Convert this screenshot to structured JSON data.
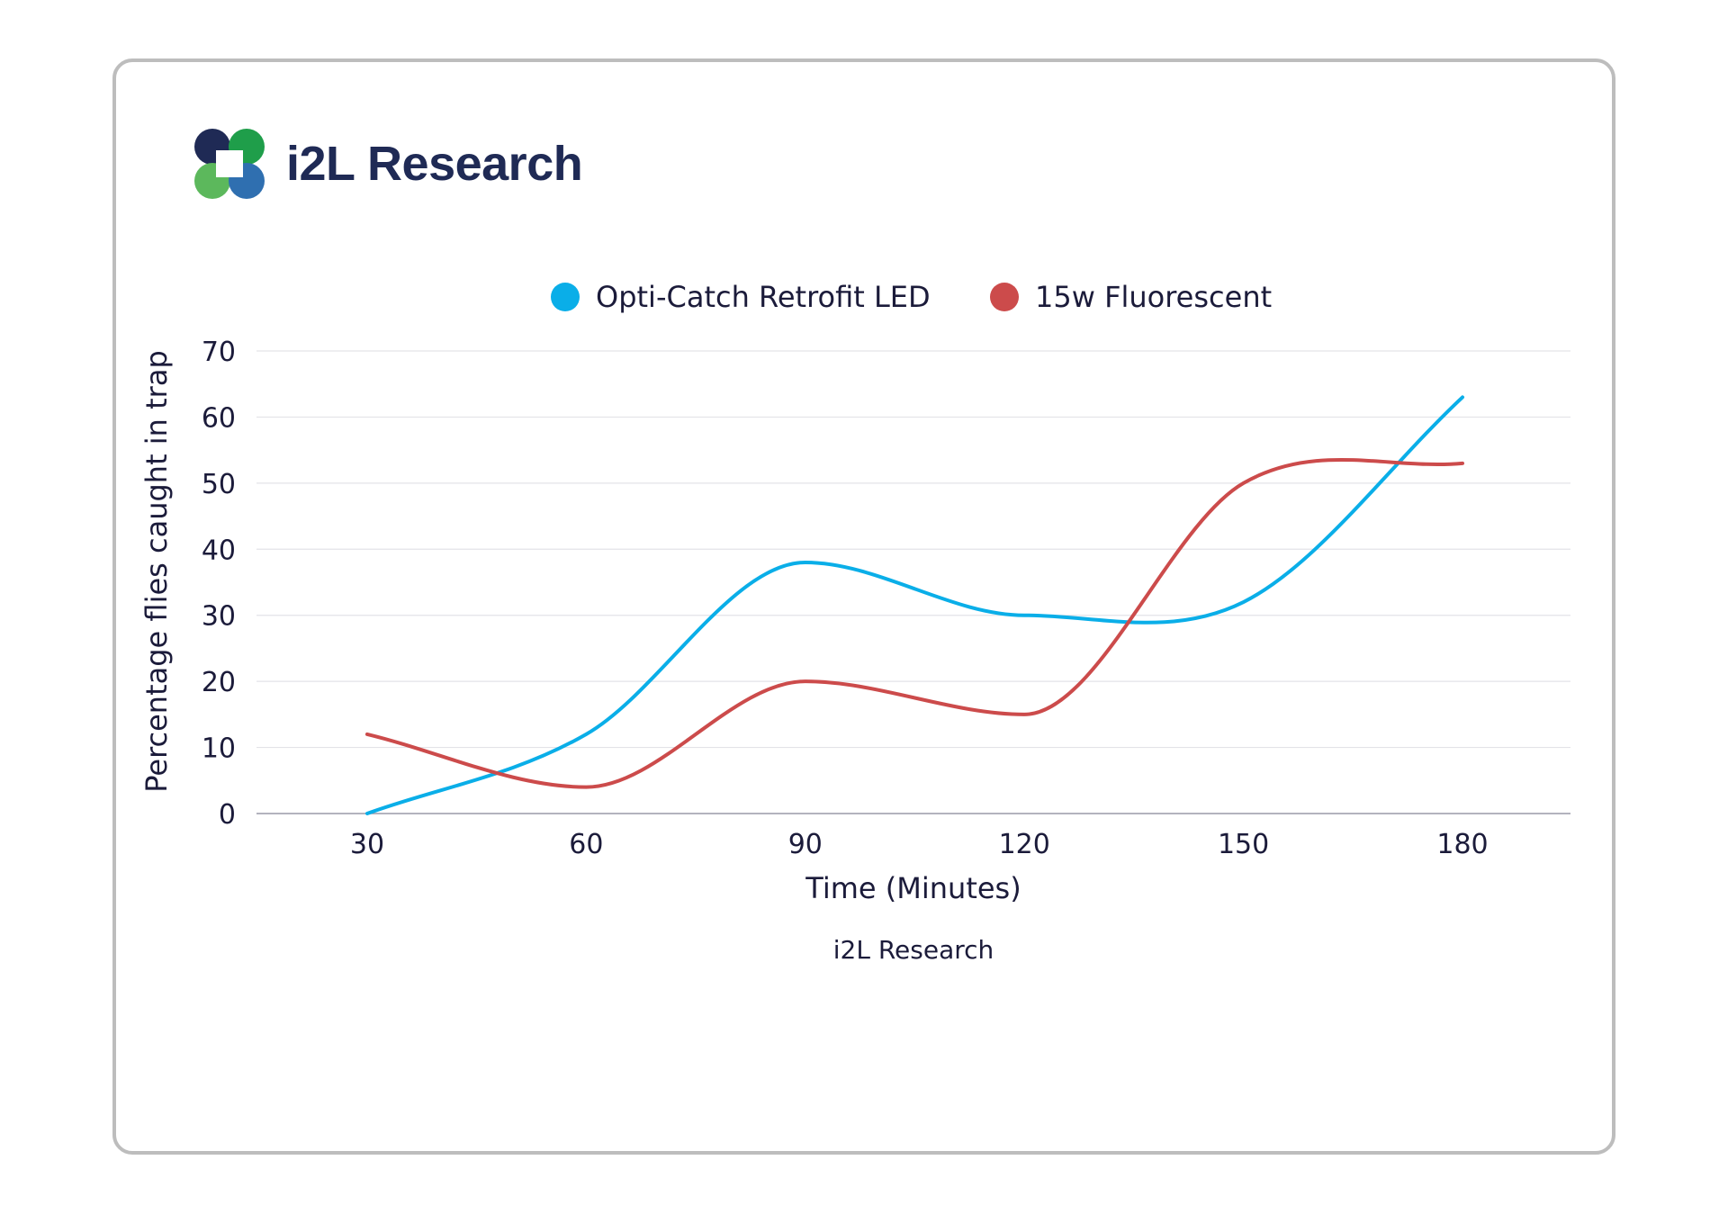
{
  "brand": {
    "name": "i2L Research",
    "logo_icon": "i2l-logo-icon",
    "colors": {
      "navy": "#1f2a55",
      "green": "#1f9e4a",
      "light_green": "#5cb85c",
      "blue": "#2f6fb0"
    }
  },
  "chart_data": {
    "type": "line",
    "smooth": true,
    "x": [
      30,
      60,
      90,
      120,
      150,
      180
    ],
    "series": [
      {
        "name": "Opti-Catch Retrofit LED",
        "color": "#0aaee8",
        "values": [
          0,
          12,
          38,
          30,
          32,
          63
        ]
      },
      {
        "name": "15w Fluorescent",
        "color": "#cc4b4b",
        "values": [
          12,
          4,
          20,
          15,
          50,
          53
        ]
      }
    ],
    "xlabel": "Time (Minutes)",
    "ylabel": "Percentage flies caught in trap",
    "yticks": [
      0,
      10,
      20,
      30,
      40,
      50,
      60,
      70
    ],
    "xticks": [
      30,
      60,
      90,
      120,
      150,
      180
    ],
    "ylim": [
      0,
      70
    ],
    "grid": true,
    "legend_position": "top",
    "source": "i2L Research"
  }
}
